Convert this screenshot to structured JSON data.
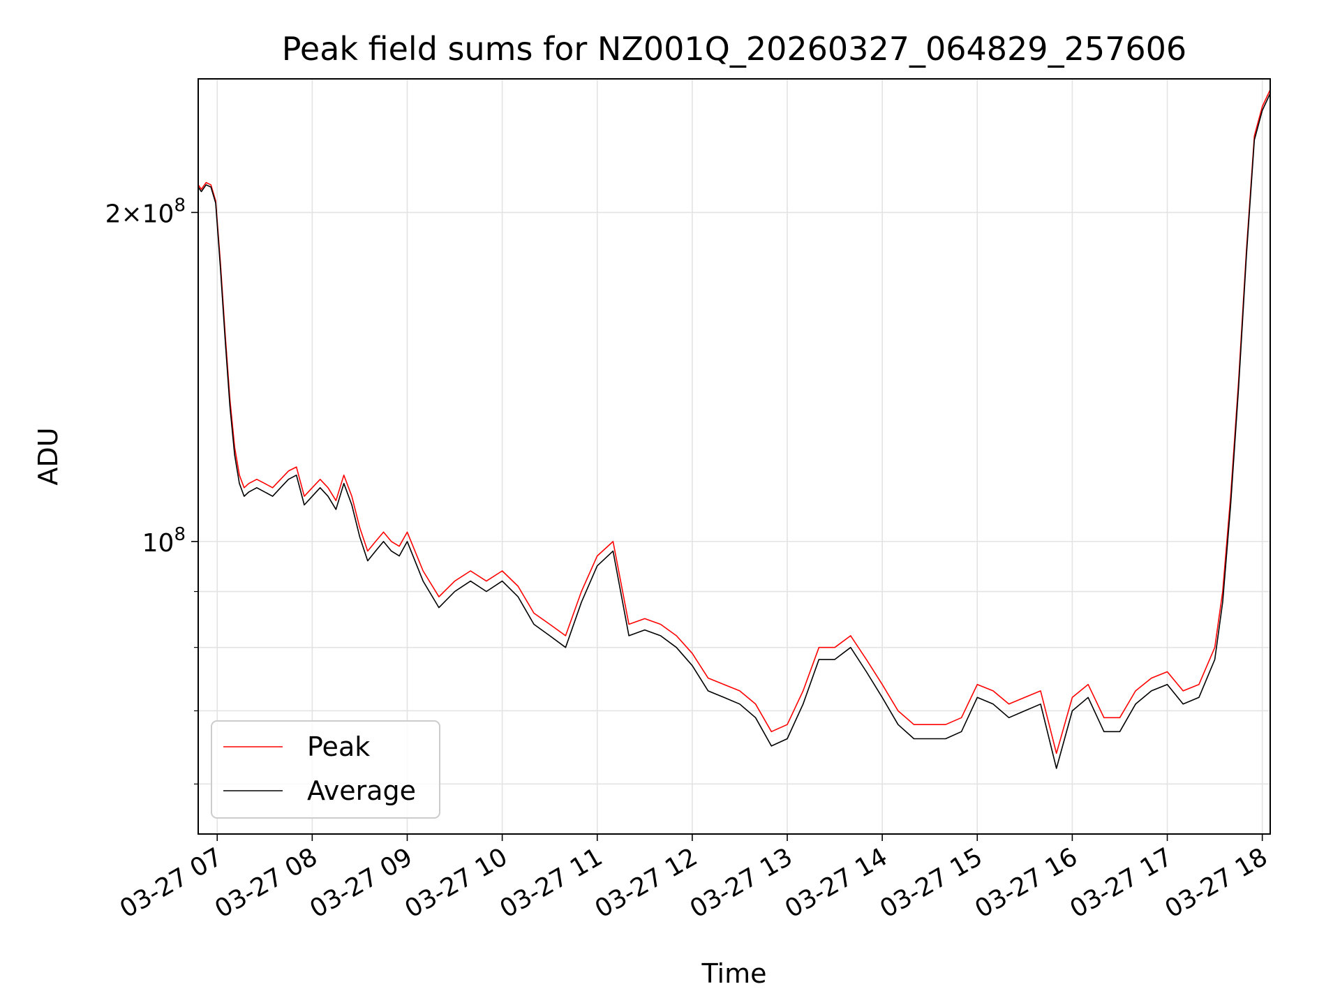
{
  "chart_data": {
    "type": "line",
    "title": "Peak field sums for NZ001Q_20260327_064829_257606",
    "xlabel": "Time",
    "ylabel": "ADU",
    "yscale": "log",
    "ylim": [
      54000000,
      265000000
    ],
    "xlim": [
      "2026-03-27 06:48",
      "2026-03-27 18:05"
    ],
    "grid": true,
    "legend_position": "lower left",
    "x_tick_labels": [
      "03-27 07",
      "03-27 08",
      "03-27 09",
      "03-27 10",
      "03-27 11",
      "03-27 12",
      "03-27 13",
      "03-27 14",
      "03-27 15",
      "03-27 16",
      "03-27 17",
      "03-27 18"
    ],
    "x_tick_times": [
      "2026-03-27 07:00",
      "2026-03-27 08:00",
      "2026-03-27 09:00",
      "2026-03-27 10:00",
      "2026-03-27 11:00",
      "2026-03-27 12:00",
      "2026-03-27 13:00",
      "2026-03-27 14:00",
      "2026-03-27 15:00",
      "2026-03-27 16:00",
      "2026-03-27 17:00",
      "2026-03-27 18:00"
    ],
    "y_tick_labels": [
      {
        "value": 200000000,
        "mantissa": "2",
        "times": "×",
        "base": "10",
        "exp": "8"
      },
      {
        "value": 100000000,
        "mantissa": "",
        "times": "",
        "base": "10",
        "exp": "8"
      }
    ],
    "y_minor_ticks": [
      90000000,
      80000000,
      70000000,
      60000000
    ],
    "x": [
      "2026-03-27 06:48",
      "2026-03-27 06:50",
      "2026-03-27 06:53",
      "2026-03-27 06:56",
      "2026-03-27 06:59",
      "2026-03-27 07:02",
      "2026-03-27 07:05",
      "2026-03-27 07:08",
      "2026-03-27 07:11",
      "2026-03-27 07:14",
      "2026-03-27 07:17",
      "2026-03-27 07:20",
      "2026-03-27 07:25",
      "2026-03-27 07:30",
      "2026-03-27 07:35",
      "2026-03-27 07:40",
      "2026-03-27 07:45",
      "2026-03-27 07:50",
      "2026-03-27 07:55",
      "2026-03-27 08:00",
      "2026-03-27 08:05",
      "2026-03-27 08:10",
      "2026-03-27 08:15",
      "2026-03-27 08:20",
      "2026-03-27 08:25",
      "2026-03-27 08:30",
      "2026-03-27 08:35",
      "2026-03-27 08:40",
      "2026-03-27 08:45",
      "2026-03-27 08:50",
      "2026-03-27 08:55",
      "2026-03-27 09:00",
      "2026-03-27 09:10",
      "2026-03-27 09:20",
      "2026-03-27 09:30",
      "2026-03-27 09:40",
      "2026-03-27 09:50",
      "2026-03-27 10:00",
      "2026-03-27 10:10",
      "2026-03-27 10:20",
      "2026-03-27 10:30",
      "2026-03-27 10:40",
      "2026-03-27 10:50",
      "2026-03-27 11:00",
      "2026-03-27 11:10",
      "2026-03-27 11:20",
      "2026-03-27 11:30",
      "2026-03-27 11:40",
      "2026-03-27 11:50",
      "2026-03-27 12:00",
      "2026-03-27 12:10",
      "2026-03-27 12:20",
      "2026-03-27 12:30",
      "2026-03-27 12:40",
      "2026-03-27 12:50",
      "2026-03-27 13:00",
      "2026-03-27 13:10",
      "2026-03-27 13:20",
      "2026-03-27 13:30",
      "2026-03-27 13:40",
      "2026-03-27 13:50",
      "2026-03-27 14:00",
      "2026-03-27 14:10",
      "2026-03-27 14:20",
      "2026-03-27 14:30",
      "2026-03-27 14:40",
      "2026-03-27 14:50",
      "2026-03-27 15:00",
      "2026-03-27 15:10",
      "2026-03-27 15:20",
      "2026-03-27 15:30",
      "2026-03-27 15:40",
      "2026-03-27 15:50",
      "2026-03-27 16:00",
      "2026-03-27 16:10",
      "2026-03-27 16:20",
      "2026-03-27 16:30",
      "2026-03-27 16:40",
      "2026-03-27 16:50",
      "2026-03-27 17:00",
      "2026-03-27 17:10",
      "2026-03-27 17:20",
      "2026-03-27 17:30",
      "2026-03-27 17:35",
      "2026-03-27 17:40",
      "2026-03-27 17:45",
      "2026-03-27 17:50",
      "2026-03-27 17:55",
      "2026-03-27 18:00",
      "2026-03-27 18:05"
    ],
    "series": [
      {
        "name": "Peak",
        "color": "#ff0000",
        "values": [
          212000000,
          210000000,
          213000000,
          212000000,
          205000000,
          180000000,
          155000000,
          135000000,
          122000000,
          115000000,
          112000000,
          113000000,
          114000000,
          113000000,
          112000000,
          114000000,
          116000000,
          117000000,
          110000000,
          112000000,
          114000000,
          112000000,
          109000000,
          115000000,
          110000000,
          103000000,
          98000000,
          100000000,
          102000000,
          100000000,
          99000000,
          102000000,
          94000000,
          89000000,
          92000000,
          94000000,
          92000000,
          94000000,
          91000000,
          86000000,
          84000000,
          82000000,
          90000000,
          97000000,
          100000000,
          84000000,
          85000000,
          84000000,
          82000000,
          79000000,
          75000000,
          74000000,
          73000000,
          71000000,
          67000000,
          68000000,
          73000000,
          80000000,
          80000000,
          82000000,
          78000000,
          74000000,
          70000000,
          68000000,
          68000000,
          68000000,
          69000000,
          74000000,
          73000000,
          71000000,
          72000000,
          73000000,
          64000000,
          72000000,
          74000000,
          69000000,
          69000000,
          73000000,
          75000000,
          76000000,
          73000000,
          74000000,
          80000000,
          90000000,
          110000000,
          140000000,
          185000000,
          235000000,
          250000000,
          259000000
        ]
      },
      {
        "name": "Average",
        "color": "#000000",
        "values": [
          211000000,
          209000000,
          212000000,
          211000000,
          204000000,
          178000000,
          153000000,
          133000000,
          120000000,
          113000000,
          110000000,
          111000000,
          112000000,
          111000000,
          110000000,
          112000000,
          114000000,
          115000000,
          108000000,
          110000000,
          112000000,
          110000000,
          107000000,
          113000000,
          108000000,
          101000000,
          96000000,
          98000000,
          100000000,
          98000000,
          97000000,
          100000000,
          92000000,
          87000000,
          90000000,
          92000000,
          90000000,
          92000000,
          89000000,
          84000000,
          82000000,
          80000000,
          88000000,
          95000000,
          98000000,
          82000000,
          83000000,
          82000000,
          80000000,
          77000000,
          73000000,
          72000000,
          71000000,
          69000000,
          65000000,
          66000000,
          71000000,
          78000000,
          78000000,
          80000000,
          76000000,
          72000000,
          68000000,
          66000000,
          66000000,
          66000000,
          67000000,
          72000000,
          71000000,
          69000000,
          70000000,
          71000000,
          62000000,
          70000000,
          72000000,
          67000000,
          67000000,
          71000000,
          73000000,
          74000000,
          71000000,
          72000000,
          78000000,
          88000000,
          108000000,
          138000000,
          183000000,
          233000000,
          248000000,
          257000000
        ]
      }
    ]
  }
}
